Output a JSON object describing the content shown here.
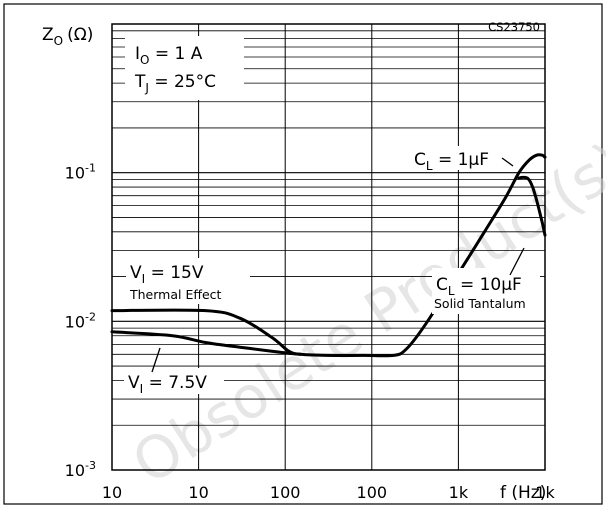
{
  "chart_data": {
    "type": "line",
    "title": "",
    "code": "CS23750",
    "xlabel": "f (Hz)",
    "ylabel": "Z",
    "ylabel_sub": "O",
    "ylabel_unit": "(Ω)",
    "x_scale": "log",
    "y_scale": "log",
    "xlim": [
      10,
      1000000
    ],
    "ylim": [
      0.001,
      1
    ],
    "grid": true,
    "x_tick_labels": [
      {
        "x": 10,
        "label": "10"
      },
      {
        "x": 100,
        "label": "10"
      },
      {
        "x": 1000,
        "label": "100"
      },
      {
        "x": 10000,
        "label": "100"
      },
      {
        "x": 100000,
        "label": "1k"
      },
      {
        "x": 1000000,
        "label": "1k"
      }
    ],
    "y_tick_labels": [
      {
        "y": 0.001,
        "base": "10",
        "exp": "-3"
      },
      {
        "y": 0.01,
        "base": "10",
        "exp": "-2"
      },
      {
        "y": 0.1,
        "base": "10",
        "exp": "-1"
      }
    ],
    "conditions": [
      {
        "main": "I",
        "sub": "O",
        "rest": " = 1 A"
      },
      {
        "main": "T",
        "sub": "J",
        "rest": " = 25°C"
      }
    ],
    "series": [
      {
        "points": [
          [
            10,
            0.0118
          ],
          [
            120,
            0.0118
          ],
          [
            300,
            0.0105
          ],
          [
            700,
            0.0078
          ],
          [
            1100,
            0.0063
          ],
          [
            1500,
            0.006
          ],
          [
            3000,
            0.0059
          ],
          [
            8000,
            0.0059
          ],
          [
            18000,
            0.0059
          ],
          [
            25000,
            0.0065
          ],
          [
            40000,
            0.0092
          ],
          [
            100000,
            0.021
          ],
          [
            200000,
            0.04
          ],
          [
            350000,
            0.068
          ],
          [
            500000,
            0.1
          ],
          [
            650000,
            0.121
          ],
          [
            800000,
            0.131
          ],
          [
            930000,
            0.131
          ],
          [
            1000000,
            0.127
          ]
        ]
      },
      {
        "points": [
          [
            500000,
            0.092
          ],
          [
            560000,
            0.093
          ],
          [
            640000,
            0.091
          ],
          [
            720000,
            0.08
          ],
          [
            820000,
            0.062
          ],
          [
            930000,
            0.046
          ],
          [
            1000000,
            0.038
          ]
        ]
      },
      {
        "points": [
          [
            10,
            0.0085
          ],
          [
            50,
            0.008
          ],
          [
            120,
            0.0072
          ],
          [
            300,
            0.0067
          ],
          [
            700,
            0.0063
          ],
          [
            1100,
            0.0061
          ],
          [
            1500,
            0.006
          ]
        ]
      }
    ],
    "annotations": [
      {
        "id": "cl1",
        "main": "C",
        "sub": "L",
        "rest": " = 1μF"
      },
      {
        "id": "cl10",
        "main": "C",
        "sub": "L",
        "rest": " = 10μF"
      },
      {
        "id": "solid",
        "text": "Solid Tantalum"
      },
      {
        "id": "vi15",
        "main": "V",
        "sub": "I",
        "rest": " = 15V"
      },
      {
        "id": "thermal",
        "text": "Thermal Effect"
      },
      {
        "id": "vi75",
        "main": "V",
        "sub": "I",
        "rest": " = 7.5V"
      }
    ],
    "watermark": "Obsolete Product(s)"
  }
}
